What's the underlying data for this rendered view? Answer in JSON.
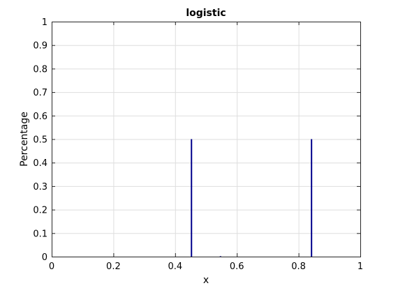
{
  "chart_data": {
    "type": "bar",
    "title": "logistic",
    "xlabel": "x",
    "ylabel": "Percentage",
    "xlim": [
      0,
      1
    ],
    "ylim": [
      0,
      1
    ],
    "xticks": [
      0,
      0.2,
      0.4,
      0.6,
      0.8,
      1
    ],
    "xtick_labels": [
      "0",
      "0.2",
      "0.4",
      "0.6",
      "0.8",
      "1"
    ],
    "yticks": [
      0,
      0.1,
      0.2,
      0.3,
      0.4,
      0.5,
      0.6,
      0.7,
      0.8,
      0.9,
      1
    ],
    "ytick_labels": [
      "0",
      "0.1",
      "0.2",
      "0.3",
      "0.4",
      "0.5",
      "0.6",
      "0.7",
      "0.8",
      "0.9",
      "1"
    ],
    "grid": true,
    "series": [
      {
        "x": [
          0.453,
          0.547,
          0.842
        ],
        "values": [
          0.5,
          0.002,
          0.5
        ],
        "color": "#00008b"
      }
    ]
  }
}
